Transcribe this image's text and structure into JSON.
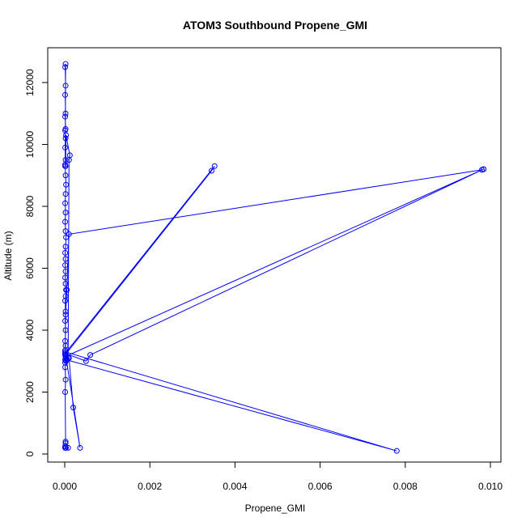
{
  "chart_data": {
    "type": "line",
    "title": "ATOM3 Southbound Propene_GMI",
    "xlabel": "Propene_GMI",
    "ylabel": "Altitude (m)",
    "xlim": [
      0,
      0.0102
    ],
    "ylim": [
      0,
      12600
    ],
    "x_ticks": [
      0.0,
      0.002,
      0.004,
      0.006,
      0.008,
      0.01
    ],
    "x_tick_labels": [
      "0.000",
      "0.002",
      "0.004",
      "0.006",
      "0.008",
      "0.010"
    ],
    "y_ticks": [
      0,
      2000,
      4000,
      6000,
      8000,
      10000,
      12000
    ],
    "y_tick_labels": [
      "0",
      "2000",
      "4000",
      "6000",
      "8000",
      "10000",
      "12000"
    ],
    "grid": false,
    "marker": "open-circle",
    "color": "#0000ff",
    "series": [
      {
        "points": [
          [
            1e-05,
            200
          ],
          [
            3e-05,
            200
          ],
          [
            8e-05,
            200
          ],
          [
            1e-05,
            200
          ],
          [
            2e-05,
            350
          ],
          [
            1e-05,
            250
          ],
          [
            2e-05,
            400
          ],
          [
            1e-05,
            2000
          ],
          [
            2e-05,
            2400
          ],
          [
            1e-05,
            2800
          ],
          [
            3e-05,
            3000
          ],
          [
            4e-05,
            3100
          ],
          [
            2e-05,
            3200
          ],
          [
            1e-05,
            3350
          ],
          [
            2e-05,
            3500
          ],
          [
            1e-05,
            3650
          ],
          [
            2e-05,
            4000
          ],
          [
            1e-05,
            4300
          ],
          [
            2e-05,
            4600
          ],
          [
            1e-05,
            4950
          ],
          [
            2e-05,
            5100
          ],
          [
            3e-05,
            5300
          ],
          [
            2e-05,
            5500
          ],
          [
            1e-05,
            5700
          ],
          [
            2e-05,
            5900
          ],
          [
            1e-05,
            6100
          ],
          [
            2e-05,
            6300
          ],
          [
            1e-05,
            6500
          ],
          [
            2e-05,
            6700
          ],
          [
            3e-05,
            7000
          ],
          [
            2e-05,
            7200
          ],
          [
            1e-05,
            7500
          ],
          [
            2e-05,
            7800
          ],
          [
            1e-05,
            8100
          ],
          [
            2e-05,
            8400
          ],
          [
            3e-05,
            8700
          ],
          [
            2e-05,
            9000
          ],
          [
            1e-05,
            9300
          ],
          [
            2e-05,
            9500
          ],
          [
            1e-05,
            9900
          ],
          [
            2e-05,
            10200
          ],
          [
            1e-05,
            10450
          ],
          [
            2e-05,
            10500
          ],
          [
            1e-05,
            10900
          ],
          [
            2e-05,
            11000
          ],
          [
            1e-05,
            11600
          ],
          [
            2e-05,
            11900
          ],
          [
            1e-05,
            12500
          ],
          [
            2e-05,
            12600
          ],
          [
            1e-05,
            9350
          ],
          [
            2e-05,
            9300
          ],
          [
            3e-05,
            10300
          ],
          [
            0.00012,
            9650
          ],
          [
            0.0001,
            9500
          ],
          [
            8e-05,
            3100
          ],
          [
            1e-05,
            3050
          ],
          [
            1e-05,
            3250
          ],
          [
            0.00352,
            9300
          ],
          [
            0.00345,
            9150
          ],
          [
            1e-05,
            3200
          ],
          [
            2e-05,
            3150
          ],
          [
            0.0001,
            3100
          ],
          [
            0.0002,
            1500
          ],
          [
            0.00036,
            200
          ],
          [
            1e-05,
            3300
          ],
          [
            0.0078,
            100
          ],
          [
            2e-05,
            3050
          ],
          [
            1e-05,
            2950
          ],
          [
            2e-05,
            3150
          ],
          [
            0.00984,
            9200
          ],
          [
            0.0098,
            9180
          ],
          [
            0.0001,
            7100
          ],
          [
            5e-05,
            5300
          ],
          [
            2e-05,
            4500
          ],
          [
            1e-05,
            3250
          ],
          [
            0.0005,
            3000
          ],
          [
            0.0006,
            3200
          ],
          [
            0.00984,
            9200
          ]
        ]
      }
    ]
  }
}
